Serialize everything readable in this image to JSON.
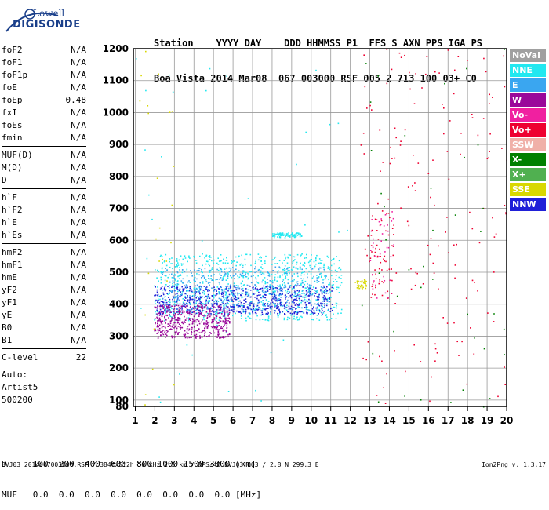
{
  "logo": {
    "top": "Lowell",
    "bottom": "DIGISONDE"
  },
  "header": {
    "line1": "Station    YYYY DAY    DDD HHMMSS P1  FFS S AXN PPS IGA PS",
    "line2": "Boa Vista 2014 Mar08  067 003000 RSF 005 2 713 100 03+ C0"
  },
  "params": [
    {
      "group": [
        {
          "name": "foF2",
          "value": "N/A"
        },
        {
          "name": "foF1",
          "value": "N/A"
        },
        {
          "name": "foF1p",
          "value": "N/A"
        },
        {
          "name": "foE",
          "value": "N/A"
        },
        {
          "name": "foEp",
          "value": "0.48"
        },
        {
          "name": "fxI",
          "value": "N/A"
        },
        {
          "name": "foEs",
          "value": "N/A"
        },
        {
          "name": "fmin",
          "value": "N/A"
        }
      ]
    },
    {
      "group": [
        {
          "name": "MUF(D)",
          "value": "N/A"
        },
        {
          "name": "M(D)",
          "value": "N/A"
        },
        {
          "name": "D",
          "value": "N/A"
        }
      ]
    },
    {
      "group": [
        {
          "name": "h`F",
          "value": "N/A"
        },
        {
          "name": "h`F2",
          "value": "N/A"
        },
        {
          "name": "h`E",
          "value": "N/A"
        },
        {
          "name": "h`Es",
          "value": "N/A"
        }
      ]
    },
    {
      "group": [
        {
          "name": "hmF2",
          "value": "N/A"
        },
        {
          "name": "hmF1",
          "value": "N/A"
        },
        {
          "name": "hmE",
          "value": "N/A"
        },
        {
          "name": "yF2",
          "value": "N/A"
        },
        {
          "name": "yF1",
          "value": "N/A"
        },
        {
          "name": "yE",
          "value": "N/A"
        },
        {
          "name": "B0",
          "value": "N/A"
        },
        {
          "name": "B1",
          "value": "N/A"
        }
      ]
    },
    {
      "group": [
        {
          "name": "C-level",
          "value": "22"
        }
      ]
    }
  ],
  "autoscale": {
    "line1": "Auto:",
    "line2": "Artist5",
    "line3": "500200"
  },
  "dtable": {
    "row1": "D     100  200  400  600  800 1000 1500 3000 [km]",
    "row2": "MUF   0.0  0.0  0.0  0.0  0.0  0.0  0.0  0.0 [MHz]"
  },
  "caption": "BVJ03_2014067003000.RSF / 384fx512h 50 kHz 2.5 km / DPS-4D BVJ03 003 / 2.8 N 299.3 E",
  "version": "Ion2Png v. 1.3.17",
  "legend": [
    {
      "label": "NoVal",
      "color": "#a0a0a0"
    },
    {
      "label": "NNE",
      "color": "#22e8f0"
    },
    {
      "label": "E",
      "color": "#3aa6f0"
    },
    {
      "label": "W",
      "color": "#9a089a"
    },
    {
      "label": "Vo-",
      "color": "#f020a0"
    },
    {
      "label": "Vo+",
      "color": "#ee0030"
    },
    {
      "label": "SSW",
      "color": "#f0b0a8"
    },
    {
      "label": "X-",
      "color": "#008000"
    },
    {
      "label": "X+",
      "color": "#50b050"
    },
    {
      "label": "SSE",
      "color": "#d8d800"
    },
    {
      "label": "NNW",
      "color": "#2020d8"
    }
  ],
  "chart_data": {
    "type": "scatter",
    "title": "",
    "xlabel": "",
    "ylabel": "",
    "xlim": [
      0.9,
      20.0
    ],
    "ylim": [
      80,
      1200
    ],
    "x_ticks": [
      1,
      2,
      3,
      4,
      5,
      6,
      7,
      8,
      9,
      10,
      11,
      12,
      13,
      14,
      15,
      16,
      17,
      18,
      19,
      20
    ],
    "y_ticks": [
      80,
      100,
      200,
      300,
      400,
      500,
      600,
      700,
      800,
      900,
      1000,
      1100,
      1200
    ],
    "grid": true,
    "clusters": [
      {
        "series": "NNE",
        "x": [
          2.0,
          11.5
        ],
        "y": [
          350,
          560
        ],
        "density": 900
      },
      {
        "series": "NNW",
        "x": [
          2.0,
          11.0
        ],
        "y": [
          370,
          460
        ],
        "density": 700
      },
      {
        "series": "W",
        "x": [
          2.0,
          5.8
        ],
        "y": [
          295,
          400
        ],
        "density": 500
      },
      {
        "series": "E",
        "x": [
          2.3,
          10.8
        ],
        "y": [
          380,
          520
        ],
        "density": 400
      },
      {
        "series": "NNE",
        "x": [
          8.0,
          9.5
        ],
        "y": [
          610,
          625
        ],
        "density": 80
      },
      {
        "series": "SSE",
        "x": [
          12.2,
          12.8
        ],
        "y": [
          450,
          480
        ],
        "density": 40
      },
      {
        "series": "Vo+",
        "x": [
          13.0,
          14.2
        ],
        "y": [
          420,
          700
        ],
        "density": 60
      },
      {
        "series": "Vo-",
        "x": [
          13.0,
          14.2
        ],
        "y": [
          420,
          700
        ],
        "density": 40
      },
      {
        "series": "Vo+",
        "x": [
          12.5,
          20.0
        ],
        "y": [
          80,
          1200
        ],
        "density": 160
      },
      {
        "series": "X-",
        "x": [
          12.5,
          20.0
        ],
        "y": [
          80,
          1200
        ],
        "density": 40
      },
      {
        "series": "SSE",
        "x": [
          1.0,
          3.0
        ],
        "y": [
          80,
          1200
        ],
        "density": 25
      },
      {
        "series": "NNE",
        "x": [
          1.0,
          12.0
        ],
        "y": [
          80,
          1200
        ],
        "density": 40
      }
    ]
  }
}
